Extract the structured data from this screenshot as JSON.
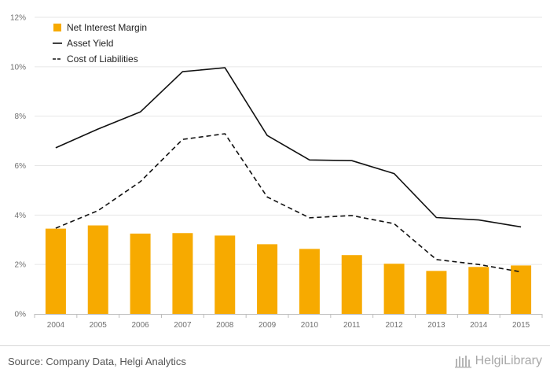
{
  "chart_data": {
    "type": "bar",
    "categories": [
      "2004",
      "2005",
      "2006",
      "2007",
      "2008",
      "2009",
      "2010",
      "2011",
      "2012",
      "2013",
      "2014",
      "2015"
    ],
    "series": [
      {
        "name": "Net Interest Margin",
        "kind": "bar",
        "color": "#f7aa00",
        "values": [
          3.45,
          3.58,
          3.25,
          3.27,
          3.17,
          2.82,
          2.63,
          2.38,
          2.03,
          1.74,
          1.9,
          1.96
        ]
      },
      {
        "name": "Asset Yield",
        "kind": "line",
        "style": "solid",
        "color": "#111111",
        "values": [
          6.72,
          7.48,
          8.17,
          9.8,
          9.96,
          7.22,
          6.23,
          6.2,
          5.68,
          3.9,
          3.8,
          3.52
        ]
      },
      {
        "name": "Cost of Liabilities",
        "kind": "line",
        "style": "dashed",
        "color": "#111111",
        "values": [
          3.47,
          4.18,
          5.35,
          7.06,
          7.29,
          4.73,
          3.89,
          3.98,
          3.65,
          2.2,
          2.0,
          1.7
        ]
      }
    ],
    "yticks": [
      "0%",
      "2%",
      "4%",
      "6%",
      "8%",
      "10%",
      "12%"
    ],
    "ylim": [
      0,
      12
    ],
    "grid": true,
    "legend_position": "top-left"
  },
  "footer": {
    "source": "Source: Company Data, Helgi Analytics",
    "brand": "HelgiLibrary"
  }
}
